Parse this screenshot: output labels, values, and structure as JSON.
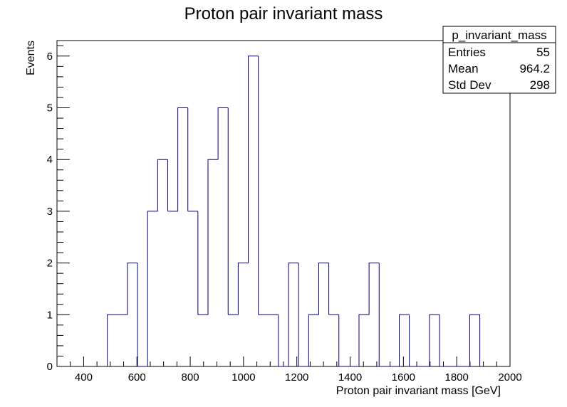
{
  "chart_data": {
    "type": "bar",
    "title": "Proton pair invariant mass",
    "xlabel": "Proton pair invariant mass [GeV]",
    "ylabel": "Events",
    "xlim": [
      300,
      2000
    ],
    "ylim": [
      0,
      6.3
    ],
    "x_ticks": [
      400,
      600,
      800,
      1000,
      1200,
      1400,
      1600,
      1800,
      2000
    ],
    "y_ticks": [
      0,
      1,
      2,
      3,
      4,
      5,
      6
    ],
    "bin_width": 37.78,
    "bin_low_edges": [
      488.9,
      526.7,
      564.4,
      602.2,
      640.0,
      677.8,
      715.6,
      753.3,
      791.1,
      828.9,
      866.7,
      904.4,
      942.2,
      980.0,
      1017.8,
      1055.6,
      1093.3,
      1131.1,
      1168.9,
      1206.7,
      1244.4,
      1282.2,
      1320.0,
      1357.8,
      1395.6,
      1433.3,
      1471.1,
      1508.9,
      1546.7,
      1584.4,
      1622.2,
      1660.0,
      1697.8,
      1735.6,
      1773.3,
      1811.1,
      1848.9
    ],
    "values": [
      1,
      1,
      2,
      0,
      3,
      4,
      3,
      5,
      3,
      1,
      4,
      5,
      1,
      2,
      6,
      1,
      1,
      0,
      2,
      0,
      1,
      2,
      1,
      0,
      0,
      1,
      2,
      0,
      0,
      1,
      0,
      0,
      1,
      0,
      0,
      0,
      1
    ],
    "line_color": "#000080",
    "grid": false,
    "stats_box": {
      "name": "p_invariant_mass",
      "rows": [
        {
          "label": "Entries",
          "value": "55"
        },
        {
          "label": "Mean",
          "value": "964.2"
        },
        {
          "label": "Std Dev",
          "value": "298"
        }
      ],
      "placement": "top-right"
    }
  }
}
